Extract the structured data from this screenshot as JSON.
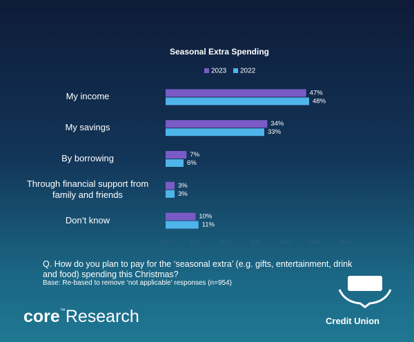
{
  "chart_data": {
    "type": "bar",
    "orientation": "horizontal",
    "title": "Seasonal Extra Spending",
    "categories": [
      "My income",
      "My savings",
      "By borrowing",
      "Through financial support from family and friends",
      "Don’t know"
    ],
    "series": [
      {
        "name": "2023",
        "color": "#7a5bc6",
        "values": [
          47,
          34,
          7,
          3,
          10
        ],
        "value_labels": [
          "47%",
          "34%",
          "7%",
          "3%",
          "10%"
        ]
      },
      {
        "name": "2022",
        "color": "#4fb4ea",
        "values": [
          48,
          33,
          6,
          3,
          11
        ],
        "value_labels": [
          "48%",
          "33%",
          "6%",
          "3%",
          "11%"
        ]
      }
    ],
    "xlim": [
      0,
      60
    ],
    "xticks": [
      {
        "value": 0,
        "label": "0%"
      },
      {
        "value": 10,
        "label": "10%"
      },
      {
        "value": 20,
        "label": "20%"
      },
      {
        "value": 30,
        "label": "30%"
      },
      {
        "value": 40,
        "label": "40%"
      },
      {
        "value": 50,
        "label": "50%"
      },
      {
        "value": 60,
        "label": "60%"
      }
    ],
    "legend": "top"
  },
  "footer": {
    "question": "Q. How do you plan to pay for the ‘seasonal extra’ (e.g. gifts, entertainment, drink and food) spending this Christmas?",
    "base_note": "Base: Re-based to remove ‘not applicable’ responses (n=954)",
    "logo_core": "core",
    "logo_tm": "™",
    "logo_research": "Research",
    "brand": "Credit Union"
  }
}
